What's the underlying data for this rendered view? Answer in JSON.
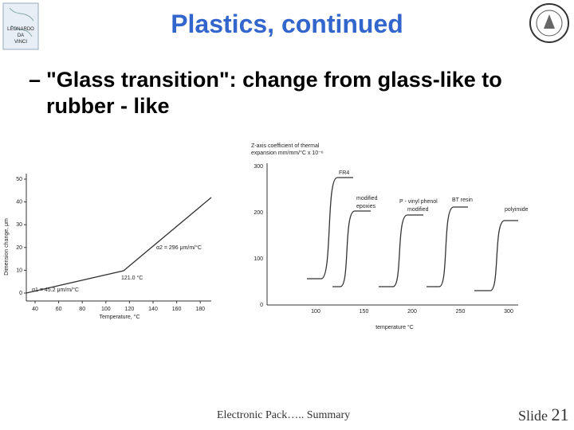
{
  "header": {
    "title": "Plastics, continued",
    "logo_left": [
      "LEONARDO",
      "DA",
      "VINCI"
    ]
  },
  "body": {
    "bullet_marker": "–",
    "text": "\"Glass transition\": change from glass-like to rubber - like"
  },
  "figure_left": {
    "y_label": "Dimension change, μm",
    "x_label": "Temperature, °C",
    "y_ticks": [
      "0",
      "10",
      "20",
      "30",
      "40",
      "50"
    ],
    "x_ticks": [
      "40",
      "60",
      "80",
      "100",
      "120",
      "140",
      "160",
      "180"
    ],
    "annotations": [
      "α2 = 296 μm/m/°C",
      "121.0 °C",
      "α1 = 45.2 μm/m/°C"
    ]
  },
  "figure_right": {
    "title": [
      "Z-axis coefficient of thermal",
      "expansion mm/mm/°C x 10⁻⁶"
    ],
    "y_ticks": [
      "0",
      "100",
      "200",
      "300"
    ],
    "x_ticks": [
      "100",
      "150",
      "200",
      "250",
      "300"
    ],
    "x_label": "temperature °C",
    "curve_labels": [
      "FR4",
      "modified",
      "epoxies",
      "P - vinyl phenol",
      "modified",
      "BT resin",
      "polyimide"
    ]
  },
  "footer": {
    "source": "Electronic Pack….. Summary",
    "slide_word": "Slide",
    "slide_number": "21"
  }
}
